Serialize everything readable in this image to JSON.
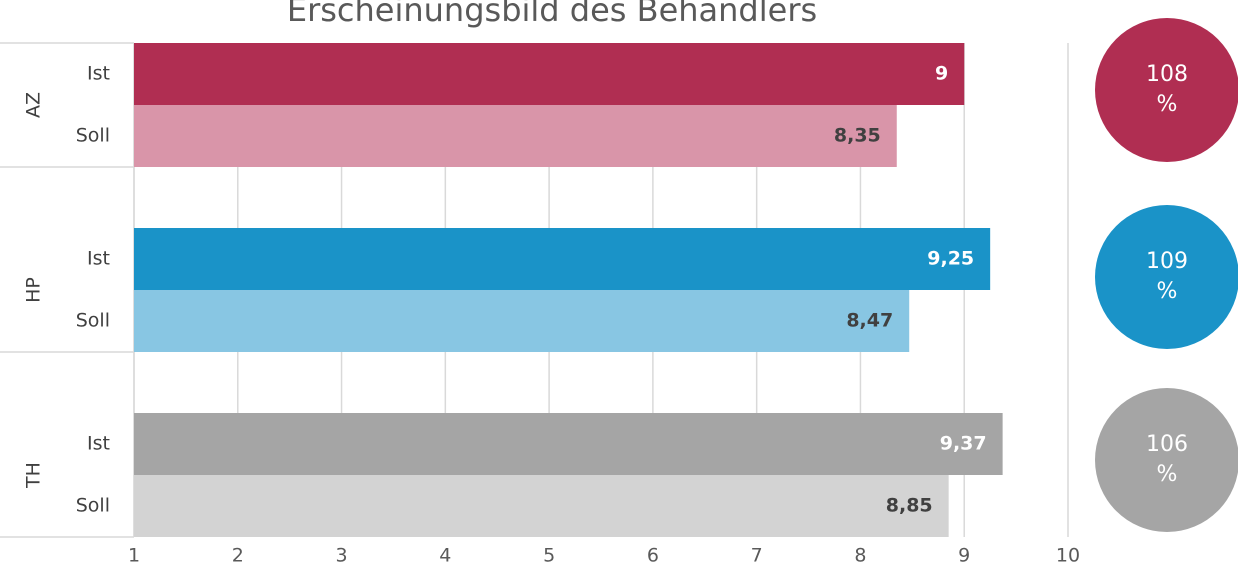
{
  "chart_data": {
    "type": "bar",
    "orientation": "horizontal",
    "title": "Erscheinungsbild des Behandlers",
    "categories": [
      "AZ",
      "HP",
      "TH"
    ],
    "series": [
      {
        "name": "Ist",
        "colors": [
          "#b02e52",
          "#1a93c8",
          "#a5a5a5"
        ],
        "values": [
          9,
          9.25,
          9.37
        ],
        "value_labels": [
          "9",
          "9,25",
          "9,37"
        ]
      },
      {
        "name": "Soll",
        "colors": [
          "#d995a9",
          "#88c6e3",
          "#d3d3d3"
        ],
        "values": [
          8.35,
          8.47,
          8.85
        ],
        "value_labels": [
          "8,35",
          "8,47",
          "8,85"
        ]
      }
    ],
    "ratios": [
      108,
      109,
      106
    ],
    "ratio_unit": "%",
    "xlim": [
      1,
      10
    ],
    "xticks": [
      1,
      2,
      3,
      4,
      5,
      6,
      7,
      8,
      9,
      10
    ],
    "grid": true
  }
}
